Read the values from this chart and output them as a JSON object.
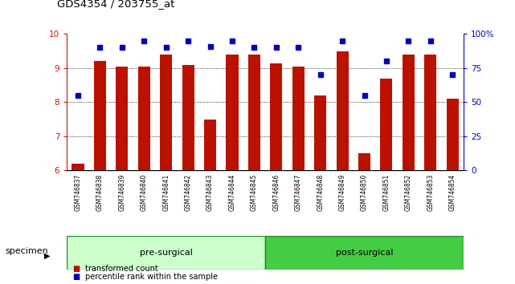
{
  "title": "GDS4354 / 203755_at",
  "samples": [
    "GSM746837",
    "GSM746838",
    "GSM746839",
    "GSM746840",
    "GSM746841",
    "GSM746842",
    "GSM746843",
    "GSM746844",
    "GSM746845",
    "GSM746846",
    "GSM746847",
    "GSM746848",
    "GSM746849",
    "GSM746850",
    "GSM746851",
    "GSM746852",
    "GSM746853",
    "GSM746854"
  ],
  "bar_values": [
    6.2,
    9.2,
    9.05,
    9.05,
    9.4,
    9.1,
    7.5,
    9.4,
    9.4,
    9.15,
    9.05,
    8.2,
    9.5,
    6.5,
    8.7,
    9.4,
    9.4,
    8.1
  ],
  "percentile_values": [
    55,
    90,
    90,
    95,
    90,
    95,
    91,
    95,
    90,
    90,
    90,
    70,
    95,
    55,
    80,
    95,
    95,
    70
  ],
  "ylim_left": [
    6,
    10
  ],
  "ylim_right": [
    0,
    100
  ],
  "yticks_left": [
    6,
    7,
    8,
    9,
    10
  ],
  "yticks_right": [
    0,
    25,
    50,
    75,
    100
  ],
  "yticklabels_right": [
    "0",
    "25",
    "50",
    "75",
    "100%"
  ],
  "bar_color": "#bb1100",
  "dot_color": "#0000bb",
  "pre_surgical_count": 9,
  "post_surgical_count": 9,
  "pre_color": "#ccffcc",
  "post_color": "#44cc44",
  "group_border_color": "#228822",
  "group_labels": [
    "pre-surgical",
    "post-surgical"
  ],
  "specimen_label": "specimen",
  "legend_bar_label": "transformed count",
  "legend_dot_label": "percentile rank within the sample",
  "background_color": "#ffffff",
  "tick_label_color_left": "#cc1100",
  "tick_label_color_right": "#0000cc",
  "sample_box_color": "#cccccc",
  "sample_box_border": "#888888"
}
